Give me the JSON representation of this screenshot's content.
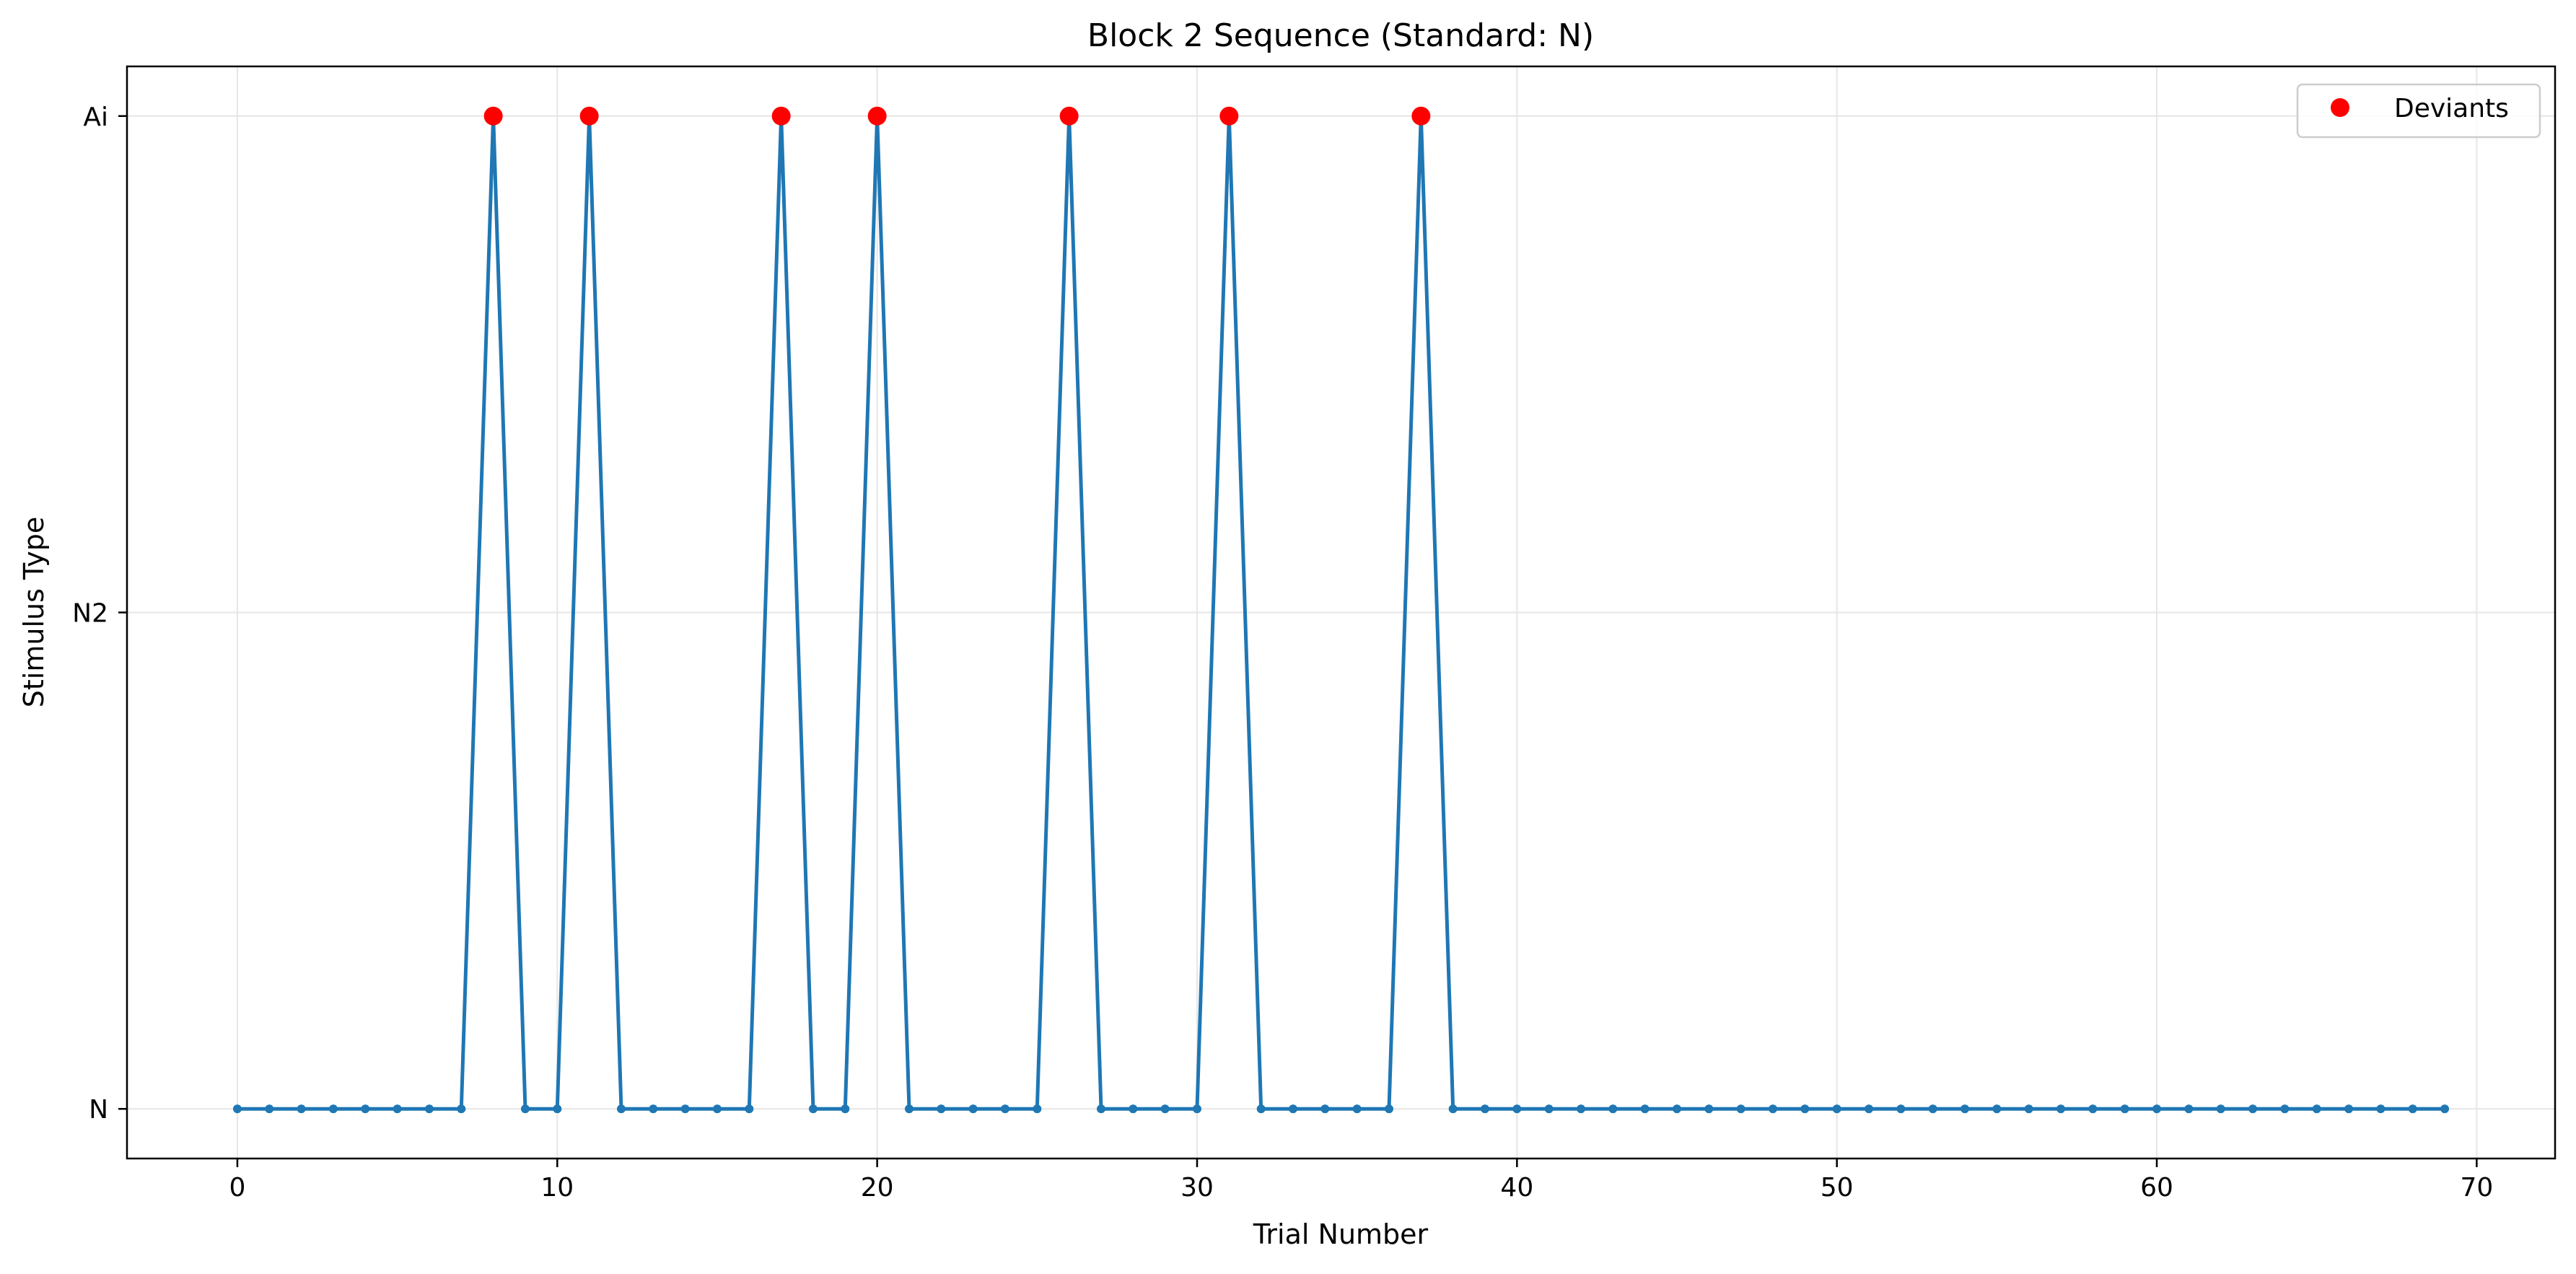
{
  "chart_data": {
    "type": "line",
    "title": "Block 2 Sequence (Standard: N)",
    "xlabel": "Trial Number",
    "ylabel": "Stimulus Type",
    "x_ticks": [
      0,
      10,
      20,
      30,
      40,
      50,
      60,
      70
    ],
    "y_categories": [
      "N",
      "N2",
      "Ai"
    ],
    "xlim": [
      -3.45,
      72.45
    ],
    "ylim": [
      -0.1,
      2.1
    ],
    "grid": true,
    "legend_position": "top-right",
    "colors": {
      "sequence_line": "#1f77b4",
      "deviant_marker": "#ff0000",
      "grid": "#e6e6e6",
      "axes": "#000000"
    },
    "series": [
      {
        "kind": "sequence",
        "x": [
          0,
          1,
          2,
          3,
          4,
          5,
          6,
          7,
          8,
          9,
          10,
          11,
          12,
          13,
          14,
          15,
          16,
          17,
          18,
          19,
          20,
          21,
          22,
          23,
          24,
          25,
          26,
          27,
          28,
          29,
          30,
          31,
          32,
          33,
          34,
          35,
          36,
          37,
          38,
          39,
          40,
          41,
          42,
          43,
          44,
          45,
          46,
          47,
          48,
          49,
          50,
          51,
          52,
          53,
          54,
          55,
          56,
          57,
          58,
          59,
          60,
          61,
          62,
          63,
          64,
          65,
          66,
          67,
          68,
          69
        ],
        "y": [
          "N",
          "N",
          "N",
          "N",
          "N",
          "N",
          "N",
          "N",
          "Ai",
          "N",
          "N",
          "Ai",
          "N",
          "N",
          "N",
          "N",
          "N",
          "Ai",
          "N",
          "N",
          "Ai",
          "N",
          "N",
          "N",
          "N",
          "N",
          "Ai",
          "N",
          "N",
          "N",
          "N",
          "Ai",
          "N",
          "N",
          "N",
          "N",
          "N",
          "Ai",
          "N",
          "N",
          "N",
          "N",
          "N",
          "N",
          "N",
          "N",
          "N",
          "N",
          "N",
          "N",
          "N",
          "N",
          "N",
          "N",
          "N",
          "N",
          "N",
          "N",
          "N",
          "N",
          "N",
          "N",
          "N",
          "N",
          "N",
          "N",
          "N",
          "N",
          "N",
          "N"
        ]
      },
      {
        "kind": "deviants",
        "name": "Deviants",
        "x": [
          8,
          11,
          17,
          20,
          26,
          31,
          37
        ],
        "y": [
          "Ai",
          "Ai",
          "Ai",
          "Ai",
          "Ai",
          "Ai",
          "Ai"
        ]
      }
    ]
  }
}
